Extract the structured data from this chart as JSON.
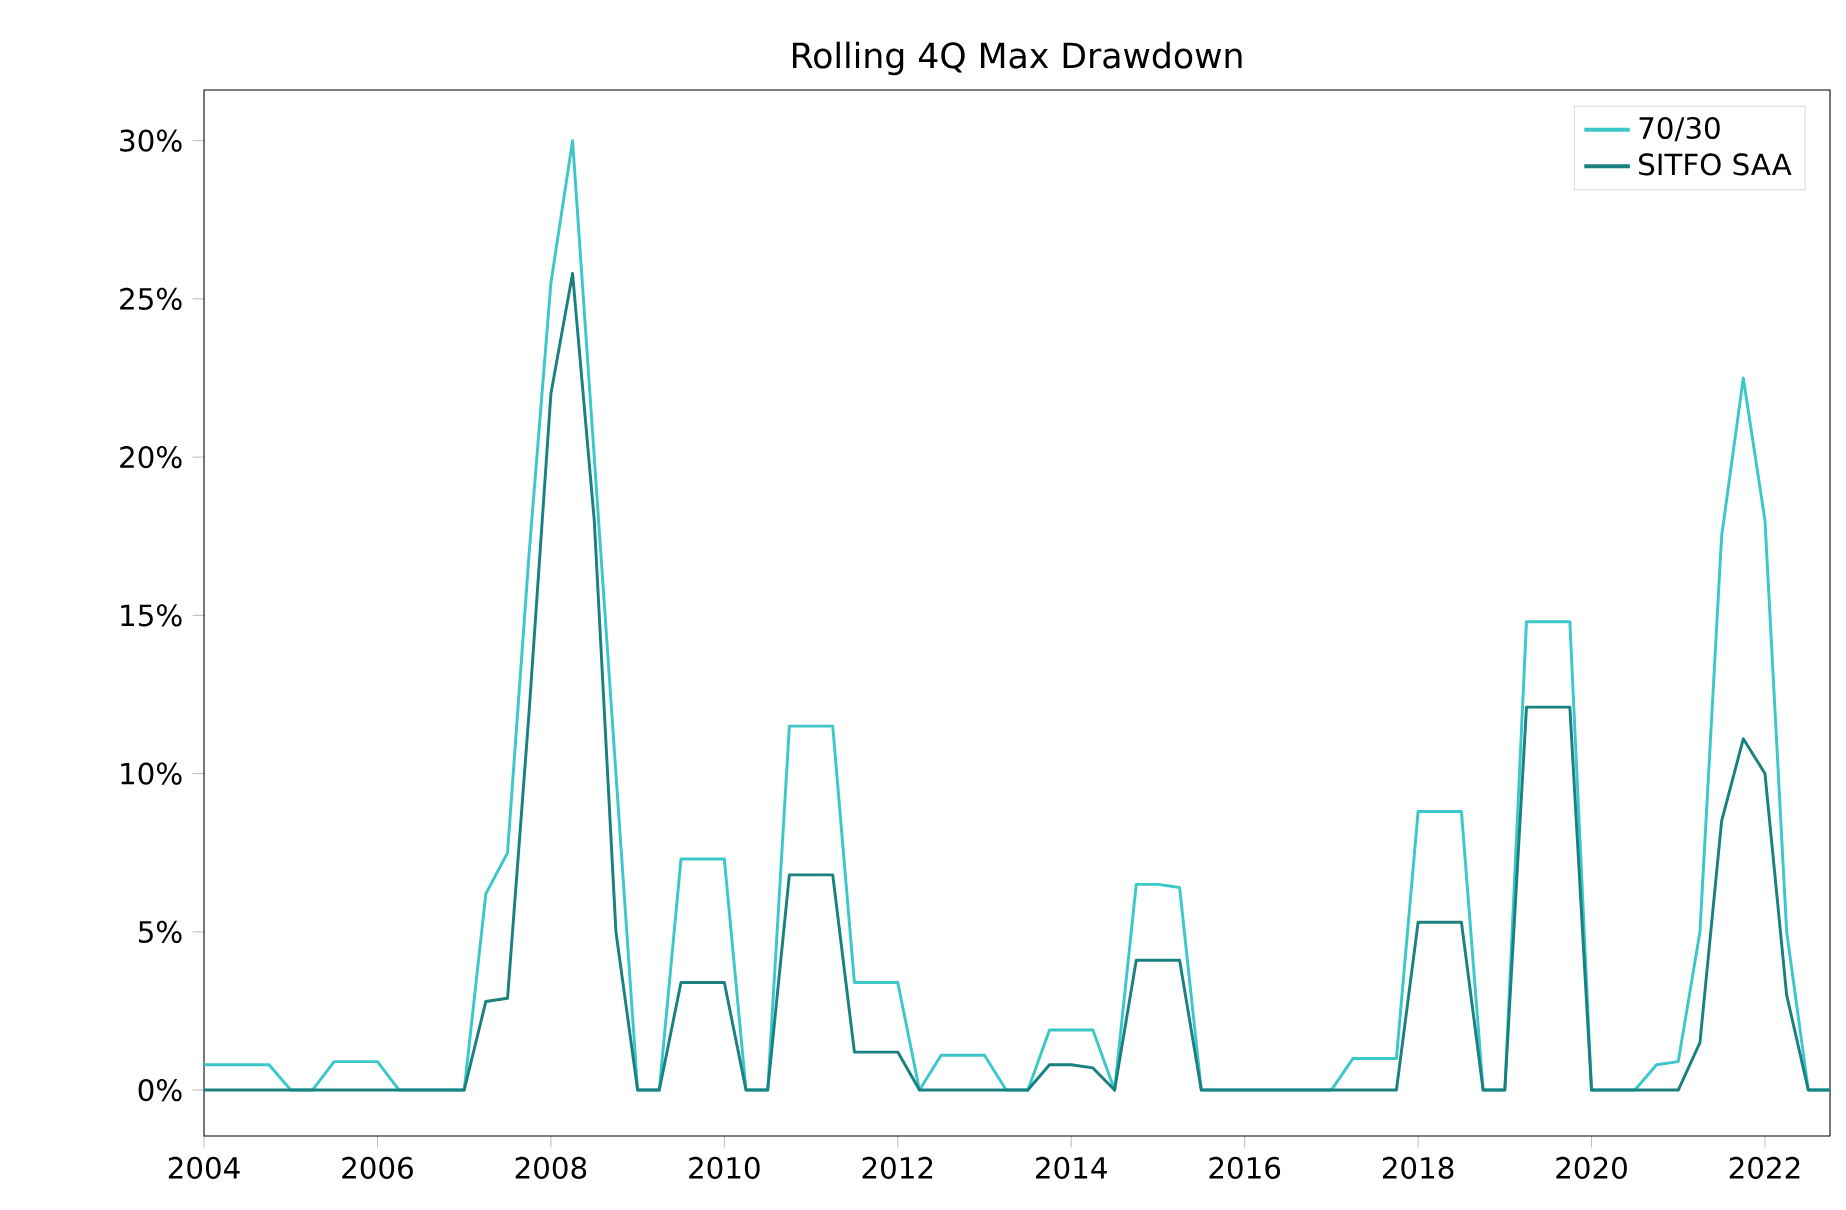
{
  "chart_data": {
    "type": "line",
    "title": "Rolling 4Q Max Drawdown",
    "x": [
      2004,
      2004.25,
      2004.5,
      2004.75,
      2005,
      2005.25,
      2005.5,
      2005.75,
      2006,
      2006.25,
      2006.5,
      2006.75,
      2007,
      2007.25,
      2007.5,
      2007.75,
      2008,
      2008.25,
      2008.5,
      2008.75,
      2009,
      2009.25,
      2009.5,
      2009.75,
      2010,
      2010.25,
      2010.5,
      2010.75,
      2011,
      2011.25,
      2011.5,
      2011.75,
      2012,
      2012.25,
      2012.5,
      2012.75,
      2013,
      2013.25,
      2013.5,
      2013.75,
      2014,
      2014.25,
      2014.5,
      2014.75,
      2015,
      2015.25,
      2015.5,
      2015.75,
      2016,
      2016.25,
      2016.5,
      2016.75,
      2017,
      2017.25,
      2017.5,
      2017.75,
      2018,
      2018.25,
      2018.5,
      2018.75,
      2019,
      2019.25,
      2019.5,
      2019.75,
      2020,
      2020.25,
      2020.5,
      2020.75,
      2021,
      2021.25,
      2021.5,
      2021.75,
      2022,
      2022.25,
      2022.5,
      2022.75
    ],
    "series": [
      {
        "name": "70/30",
        "color": "#3cc8c8",
        "values": [
          0.8,
          0.8,
          0.8,
          0.8,
          0,
          0,
          0.9,
          0.9,
          0.9,
          0,
          0,
          0,
          0,
          6.2,
          7.5,
          17,
          25.5,
          30,
          20,
          10,
          0,
          0,
          7.3,
          7.3,
          7.3,
          0,
          0,
          11.5,
          11.5,
          11.5,
          3.4,
          3.4,
          3.4,
          0,
          1.1,
          1.1,
          1.1,
          0,
          0,
          1.9,
          1.9,
          1.9,
          0,
          6.5,
          6.5,
          6.4,
          0,
          0,
          0,
          0,
          0,
          0,
          0,
          1.0,
          1.0,
          1.0,
          8.8,
          8.8,
          8.8,
          0,
          0,
          14.8,
          14.8,
          14.8,
          0,
          0,
          0,
          0.8,
          0.9,
          5,
          17.5,
          22.5,
          18,
          5,
          0,
          0
        ]
      },
      {
        "name": "SITFO SAA",
        "color": "#1a8080",
        "values": [
          0,
          0,
          0,
          0,
          0,
          0,
          0,
          0,
          0,
          0,
          0,
          0,
          0,
          2.8,
          2.9,
          12,
          22,
          25.8,
          18,
          5,
          0,
          0,
          3.4,
          3.4,
          3.4,
          0,
          0,
          6.8,
          6.8,
          6.8,
          1.2,
          1.2,
          1.2,
          0,
          0,
          0,
          0,
          0,
          0,
          0.8,
          0.8,
          0.7,
          0,
          4.1,
          4.1,
          4.1,
          0,
          0,
          0,
          0,
          0,
          0,
          0,
          0,
          0,
          0,
          5.3,
          5.3,
          5.3,
          0,
          0,
          12.1,
          12.1,
          12.1,
          0,
          0,
          0,
          0,
          0,
          1.5,
          8.5,
          11.1,
          10,
          3,
          0,
          0
        ]
      }
    ],
    "xlim": [
      2004,
      2022.75
    ],
    "xticks": [
      2004,
      2006,
      2008,
      2010,
      2012,
      2014,
      2016,
      2018,
      2020,
      2022
    ],
    "ylim": [
      -1.45,
      31.6
    ],
    "yticks": [
      {
        "value": 0,
        "label": "0%"
      },
      {
        "value": 5,
        "label": "5%"
      },
      {
        "value": 10,
        "label": "10%"
      },
      {
        "value": 15,
        "label": "15%"
      },
      {
        "value": 20,
        "label": "20%"
      },
      {
        "value": 25,
        "label": "25%"
      },
      {
        "value": 30,
        "label": "30%"
      }
    ],
    "legend": "top right",
    "grid": false,
    "line_style": "solid"
  }
}
